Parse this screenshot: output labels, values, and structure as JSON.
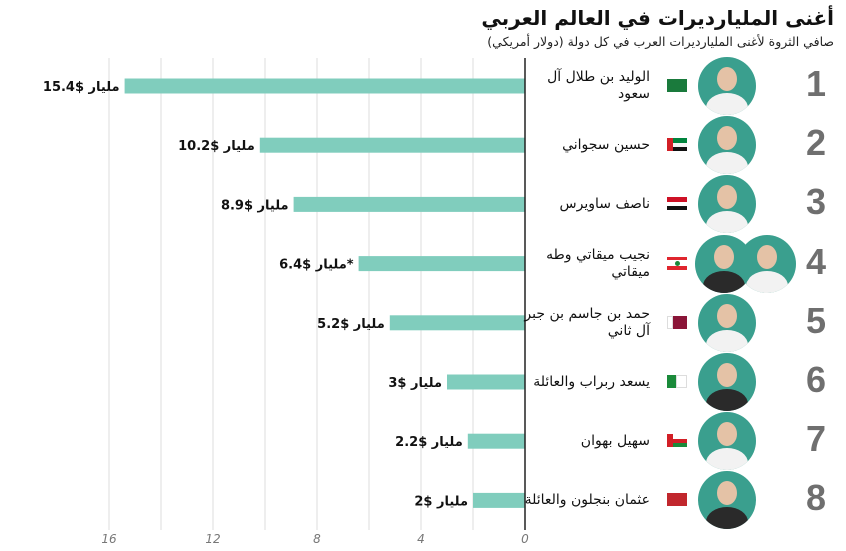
{
  "title": "أغنى المليارديرات في العالم العربي",
  "subtitle": "صافي الثروة لأغنى المليارديرات العرب في كل دولة (دولار أمريكي)",
  "colors": {
    "bar": "#80cdbd",
    "avatar_bg": "#3a9f8e",
    "axis": "#222222",
    "grid": "#dddddd",
    "rank": "#6f6f6f"
  },
  "chart_data": {
    "type": "bar",
    "orientation": "horizontal",
    "direction": "right-to-left",
    "categories": [
      "الوليد بن طلال آل سعود",
      "حسين سجواني",
      "ناصف ساويرس",
      "نجيب ميقاتي وطه ميقاتي",
      "حمد بن جاسم بن جبر آل ثاني",
      "يسعد ربراب والعائلة",
      "سهيل بهوان",
      "عثمان بنجلون والعائلة"
    ],
    "values": [
      15.4,
      10.2,
      8.9,
      6.4,
      5.2,
      3,
      2.2,
      2
    ],
    "data_labels": [
      "مليار $15.4",
      "مليار $10.2",
      "مليار $8.9",
      "مليار $6.4*",
      "مليار $5.2",
      "مليار $3",
      "مليار $2.2",
      "مليار $2"
    ],
    "xlim": [
      0,
      16
    ],
    "xticks": [
      "16",
      "12",
      "8",
      "4",
      "0"
    ],
    "grid": true
  },
  "rows": [
    {
      "rank": "1",
      "name": "الوليد بن طلال آل سعود",
      "flag": "saudi-arabia",
      "avatars": 1
    },
    {
      "rank": "2",
      "name": "حسين سجواني",
      "flag": "uae",
      "avatars": 1
    },
    {
      "rank": "3",
      "name": "ناصف ساويرس",
      "flag": "egypt",
      "avatars": 1
    },
    {
      "rank": "4",
      "name": "نجيب ميقاتي وطه ميقاتي",
      "flag": "lebanon",
      "avatars": 2
    },
    {
      "rank": "5",
      "name": "حمد بن جاسم بن جبر آل ثاني",
      "flag": "qatar",
      "avatars": 1
    },
    {
      "rank": "6",
      "name": "يسعد ربراب والعائلة",
      "flag": "algeria",
      "avatars": 1
    },
    {
      "rank": "7",
      "name": "سهيل بهوان",
      "flag": "oman",
      "avatars": 1
    },
    {
      "rank": "8",
      "name": "عثمان بنجلون والعائلة",
      "flag": "morocco",
      "avatars": 1
    }
  ]
}
